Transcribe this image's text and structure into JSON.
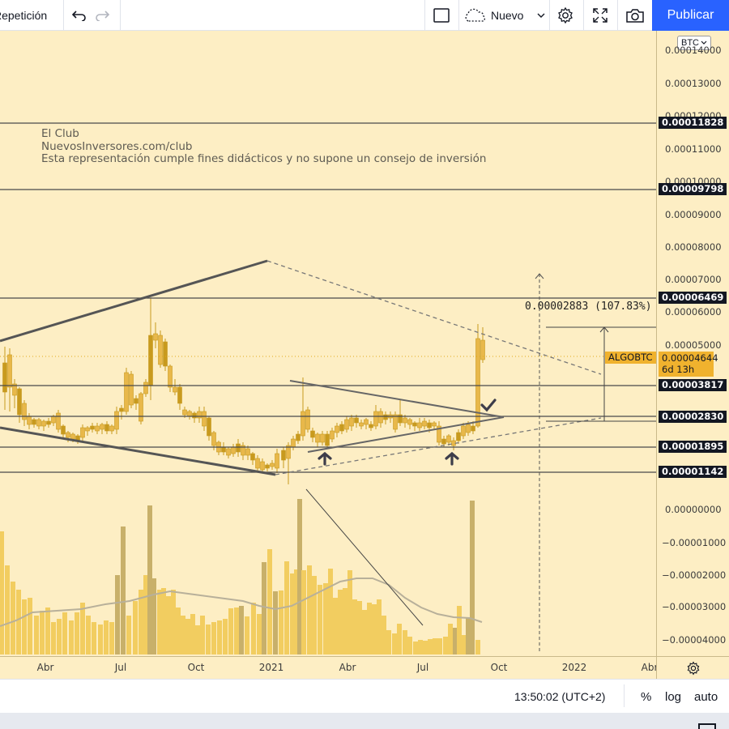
{
  "toolbar": {
    "replay_label": "Repetición",
    "undo_icon": "undo-icon",
    "redo_icon": "redo-icon",
    "rect_icon": "rectangle-icon",
    "cloud_icon": "cloud-icon",
    "layout_label": "Nuevo",
    "settings_icon": "gear-icon",
    "fullscreen_icon": "fullscreen-icon",
    "snapshot_icon": "camera-icon",
    "publish_label": "Publicar"
  },
  "watermark": {
    "line1": "El Club",
    "line2": "NuevosInversores.com/club",
    "line3": "Esta representación cumple fines didácticos y no supone un consejo de inversión"
  },
  "price_scale": {
    "currency_button": "BTC",
    "ticks": [
      {
        "label": "0.00014000",
        "partial": true
      },
      {
        "label": "0.00013000",
        "partial": false
      },
      {
        "label": "0.00012000",
        "partial": true
      },
      {
        "label": "0.00011000",
        "partial": false
      },
      {
        "label": "0.00010000",
        "partial": true
      },
      {
        "label": "0.00009000",
        "partial": false
      },
      {
        "label": "0.00008000",
        "partial": false
      },
      {
        "label": "0.00007000",
        "partial": false
      },
      {
        "label": "0.00006000",
        "partial": false
      },
      {
        "label": "0.00005000",
        "partial": false
      },
      {
        "label": "0.00000000",
        "partial": false
      },
      {
        "label": "−0.00001000",
        "partial": false
      },
      {
        "label": "−0.00002000",
        "partial": false
      },
      {
        "label": "−0.00003000",
        "partial": false
      },
      {
        "label": "−0.00004000",
        "partial": false
      }
    ],
    "level_tags": [
      "0.00011828",
      "0.00009798",
      "0.00006469",
      "0.00003817",
      "0.00002830",
      "0.00001895",
      "0.00001142"
    ],
    "current_price": "0.00004644",
    "current_countdown": "6d 13h"
  },
  "chart": {
    "symbol_label": "ALGOBTC",
    "measure_label": "0.00002883 (107.83%)",
    "colors": {
      "background": "#fdeec4",
      "candle_body": "#e8b84a",
      "candle_dark": "#c89a1e",
      "volume": "#f2cd60",
      "volume_dark": "#c8b06a",
      "line": "#555555",
      "level_line": "#4a4a4a",
      "arrow": "#3d3d4a"
    },
    "annotations": [
      "up-arrow-icon",
      "up-arrow-icon",
      "check-icon"
    ]
  },
  "time_axis": {
    "labels": [
      "Abr",
      "Jul",
      "Oct",
      "2021",
      "Abr",
      "Jul",
      "Oct",
      "2022",
      "Abr"
    ],
    "settings_icon": "gear-icon"
  },
  "bottom_bar": {
    "clock": "13:50:02 (UTC+2)",
    "percent_label": "%",
    "log_label": "log",
    "auto_label": "auto"
  }
}
